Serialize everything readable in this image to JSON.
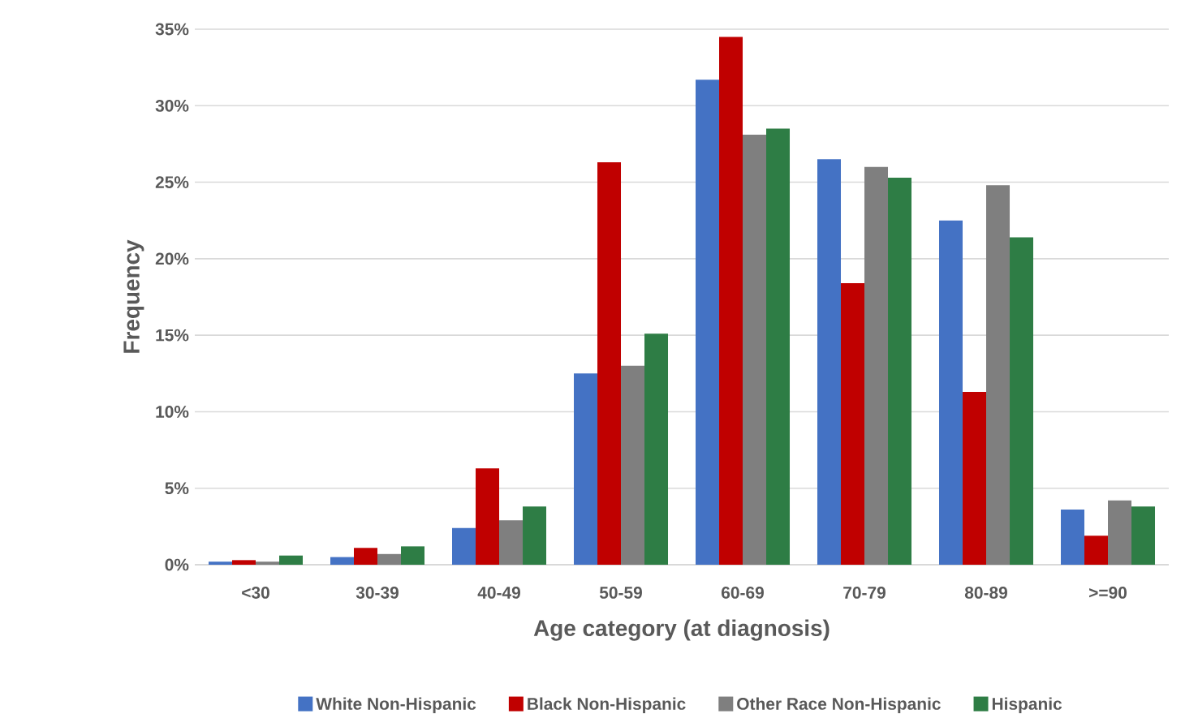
{
  "chart_data": {
    "type": "bar",
    "xlabel": "Age category (at diagnosis)",
    "ylabel": "Frequency",
    "categories": [
      "<30",
      "30-39",
      "40-49",
      "50-59",
      "60-69",
      "70-79",
      "80-89",
      ">=90"
    ],
    "series": [
      {
        "name": "White Non-Hispanic",
        "color": "#4472c4",
        "values": [
          0.2,
          0.5,
          2.4,
          12.5,
          31.7,
          26.5,
          22.5,
          3.6
        ]
      },
      {
        "name": "Black Non-Hispanic",
        "color": "#c00000",
        "values": [
          0.3,
          1.1,
          6.3,
          26.3,
          34.5,
          18.4,
          11.3,
          1.9
        ]
      },
      {
        "name": "Other Race Non-Hispanic",
        "color": "#7f7f7f",
        "values": [
          0.2,
          0.7,
          2.9,
          13.0,
          28.1,
          26.0,
          24.8,
          4.2
        ]
      },
      {
        "name": "Hispanic",
        "color": "#2e7d45",
        "values": [
          0.6,
          1.2,
          3.8,
          15.1,
          28.5,
          25.3,
          21.4,
          3.8
        ]
      }
    ],
    "ylim": [
      0,
      35
    ],
    "yticks": [
      {
        "value": 0,
        "label": "0%"
      },
      {
        "value": 5,
        "label": "5%"
      },
      {
        "value": 10,
        "label": "10%"
      },
      {
        "value": 15,
        "label": "15%"
      },
      {
        "value": 20,
        "label": "20%"
      },
      {
        "value": 25,
        "label": "25%"
      },
      {
        "value": 30,
        "label": "30%"
      },
      {
        "value": 35,
        "label": "35%"
      }
    ],
    "grid": "y",
    "legend": "bottom"
  }
}
